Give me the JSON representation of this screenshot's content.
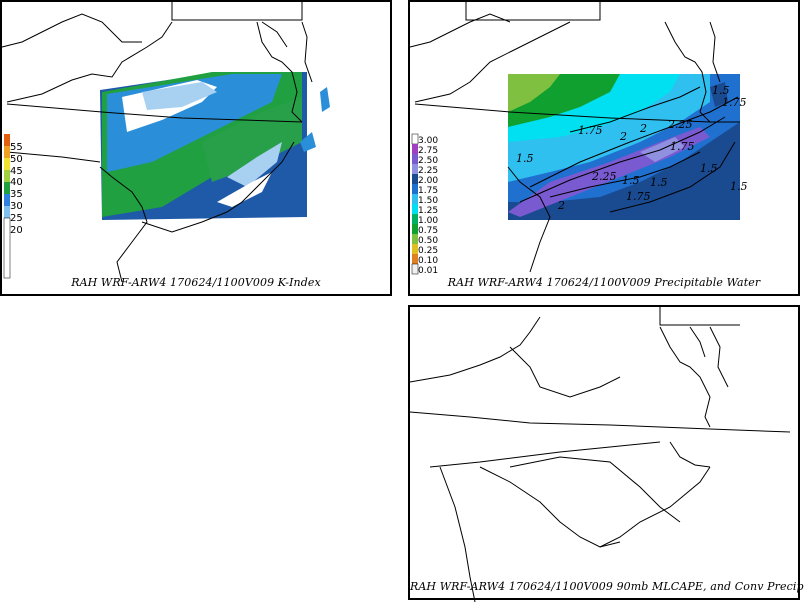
{
  "panels": {
    "kindex": {
      "caption": "RAH WRF-ARW4 170624/1100V009 K-Index",
      "legend": [
        {
          "label": "55",
          "color": "#e06010"
        },
        {
          "label": "50",
          "color": "#f0a020"
        },
        {
          "label": "45",
          "color": "#f0e030"
        },
        {
          "label": "40",
          "color": "#a0d040"
        },
        {
          "label": "35",
          "color": "#20a040"
        },
        {
          "label": "30",
          "color": "#3080e0"
        },
        {
          "label": "25",
          "color": "#80c0f0"
        },
        {
          "label": "20",
          "color": "#e8f0f8"
        }
      ]
    },
    "pwat": {
      "caption": "RAH WRF-ARW4 170624/1100V009 Precipitable Water",
      "legend": [
        {
          "label": "3.00",
          "color": "#ffffff"
        },
        {
          "label": "2.75",
          "color": "#a040c0"
        },
        {
          "label": "2.50",
          "color": "#7a5ad0"
        },
        {
          "label": "2.25",
          "color": "#9090e0"
        },
        {
          "label": "2.00",
          "color": "#1a4a90"
        },
        {
          "label": "1.75",
          "color": "#2070d0"
        },
        {
          "label": "1.50",
          "color": "#30c0f0"
        },
        {
          "label": "1.25",
          "color": "#00e0f0"
        },
        {
          "label": "1.00",
          "color": "#00b060"
        },
        {
          "label": "0.75",
          "color": "#10a030"
        },
        {
          "label": "0.50",
          "color": "#80c040"
        },
        {
          "label": "0.25",
          "color": "#e0c020"
        },
        {
          "label": "0.10",
          "color": "#e08020"
        },
        {
          "label": "0.01",
          "color": "#f0f0f0"
        }
      ],
      "contour_labels": [
        "1.5",
        "1.75",
        "2",
        "2.25",
        "1.75",
        "1.5",
        "1.5",
        "2",
        "2.25",
        "1.75",
        "1.5",
        "1.5",
        "1.75",
        "1.5",
        "2"
      ]
    },
    "cape": {
      "caption": "RAH WRF-ARW4 170624/1100V009 90mb MLCAPE, and Conv Precip"
    }
  }
}
